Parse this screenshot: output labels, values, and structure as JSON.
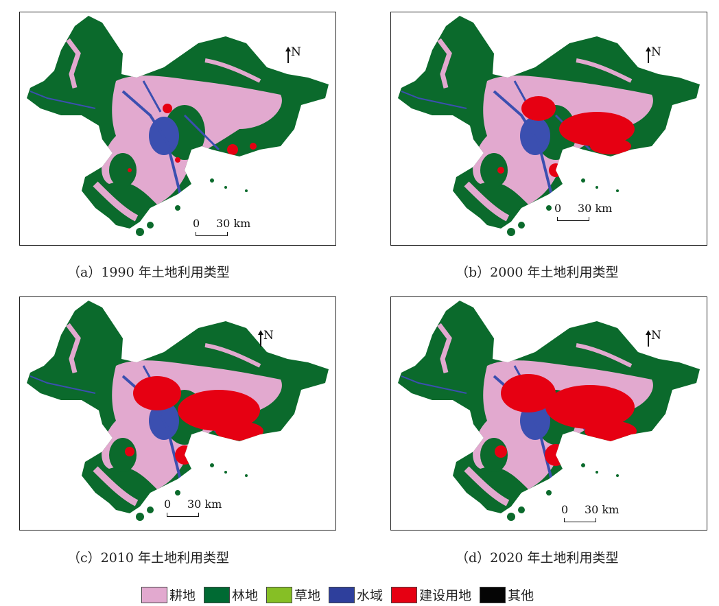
{
  "panels": [
    {
      "id": "a",
      "caption": "（a）1990 年土地利用类型"
    },
    {
      "id": "b",
      "caption": "（b）2000 年土地利用类型"
    },
    {
      "id": "c",
      "caption": "（c）2010 年土地利用类型"
    },
    {
      "id": "d",
      "caption": "（d）2020 年土地利用类型"
    }
  ],
  "north_label": "N",
  "scale": {
    "zero": "0",
    "end": "30 km"
  },
  "legend": [
    {
      "label": "耕地",
      "color": "#e2a9cf"
    },
    {
      "label": "林地",
      "color": "#006a33"
    },
    {
      "label": "草地",
      "color": "#86bf25"
    },
    {
      "label": "水域",
      "color": "#2e3f9c"
    },
    {
      "label": "建设用地",
      "color": "#e60012"
    },
    {
      "label": "其他",
      "color": "#050505"
    }
  ]
}
